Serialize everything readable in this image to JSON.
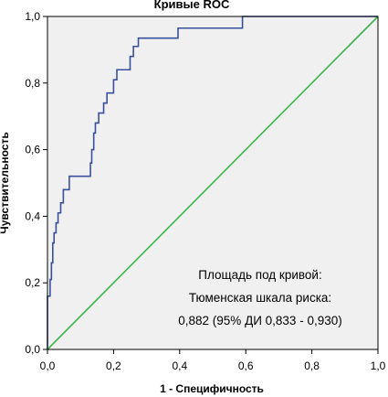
{
  "chart_data": {
    "type": "line",
    "title": "Кривые ROC",
    "xlabel": "1 - Специфичность",
    "ylabel": "Чувствительность",
    "xlim": [
      0,
      1
    ],
    "ylim": [
      0,
      1
    ],
    "x_ticks": [
      "0,0",
      "0,2",
      "0,4",
      "0,6",
      "0,8",
      "1,0"
    ],
    "y_ticks": [
      "0,0",
      "0,2",
      "0,4",
      "0,6",
      "0,8",
      "1,0"
    ],
    "grid": false,
    "background_color": "#f0f0f0",
    "series": [
      {
        "color": "#3a4f9c",
        "step": true,
        "points": [
          [
            0.0,
            0.0
          ],
          [
            0.0,
            0.16
          ],
          [
            0.008,
            0.16
          ],
          [
            0.008,
            0.21
          ],
          [
            0.012,
            0.21
          ],
          [
            0.012,
            0.26
          ],
          [
            0.016,
            0.26
          ],
          [
            0.016,
            0.32
          ],
          [
            0.02,
            0.32
          ],
          [
            0.02,
            0.35
          ],
          [
            0.026,
            0.35
          ],
          [
            0.026,
            0.38
          ],
          [
            0.032,
            0.38
          ],
          [
            0.032,
            0.41
          ],
          [
            0.04,
            0.41
          ],
          [
            0.04,
            0.44
          ],
          [
            0.048,
            0.44
          ],
          [
            0.048,
            0.48
          ],
          [
            0.066,
            0.48
          ],
          [
            0.066,
            0.52
          ],
          [
            0.13,
            0.52
          ],
          [
            0.13,
            0.56
          ],
          [
            0.134,
            0.56
          ],
          [
            0.134,
            0.6
          ],
          [
            0.14,
            0.6
          ],
          [
            0.14,
            0.65
          ],
          [
            0.145,
            0.65
          ],
          [
            0.145,
            0.68
          ],
          [
            0.155,
            0.68
          ],
          [
            0.155,
            0.71
          ],
          [
            0.17,
            0.71
          ],
          [
            0.17,
            0.74
          ],
          [
            0.18,
            0.74
          ],
          [
            0.18,
            0.77
          ],
          [
            0.2,
            0.77
          ],
          [
            0.2,
            0.81
          ],
          [
            0.21,
            0.81
          ],
          [
            0.21,
            0.84
          ],
          [
            0.25,
            0.84
          ],
          [
            0.25,
            0.88
          ],
          [
            0.26,
            0.88
          ],
          [
            0.26,
            0.91
          ],
          [
            0.275,
            0.91
          ],
          [
            0.275,
            0.935
          ],
          [
            0.395,
            0.935
          ],
          [
            0.395,
            0.965
          ],
          [
            0.59,
            0.965
          ],
          [
            0.59,
            1.0
          ],
          [
            1.0,
            1.0
          ]
        ]
      },
      {
        "color": "#3cb44b",
        "points": [
          [
            0,
            0
          ],
          [
            1,
            1
          ]
        ]
      }
    ],
    "annotation": [
      "Площадь под кривой:",
      "Тюменская шкала риска:",
      "0,882 (95% ДИ 0,833 - 0,930)"
    ]
  }
}
